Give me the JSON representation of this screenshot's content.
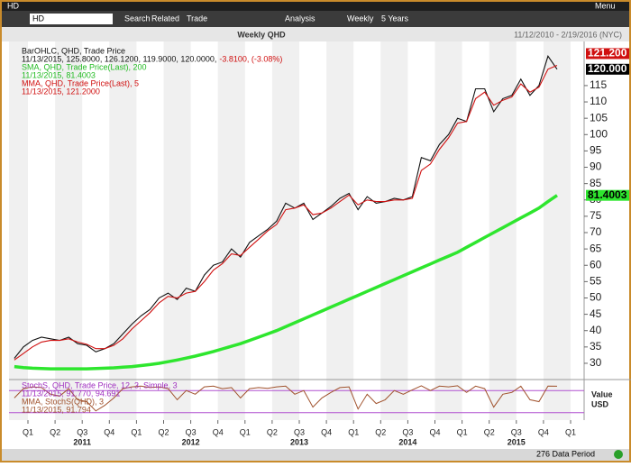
{
  "window": {
    "symbol": "HD",
    "menu": "Menu"
  },
  "toolbar": {
    "input": "HD",
    "items": [
      "Search",
      "Related",
      "Trade",
      "Analysis",
      "Weekly",
      "5 Years"
    ]
  },
  "chart_data": {
    "type": "line",
    "title": "Weekly QHD",
    "date_range": "11/12/2010 - 2/19/2016 (NYC)",
    "ylim": [
      25.3,
      128.5
    ],
    "yticks": [
      30,
      35,
      40,
      45,
      50,
      55,
      60,
      65,
      70,
      75,
      80,
      85,
      90,
      95,
      100,
      105,
      110,
      115
    ],
    "quarter_labels": [
      "Q1",
      "Q2",
      "Q3",
      "Q4",
      "Q1",
      "Q2",
      "Q3",
      "Q4",
      "Q1",
      "Q2",
      "Q3",
      "Q4",
      "Q1",
      "Q2",
      "Q3",
      "Q4",
      "Q1",
      "Q2",
      "Q3",
      "Q4",
      "Q1"
    ],
    "years": [
      "2011",
      "2012",
      "2013",
      "2014",
      "2015"
    ],
    "series": [
      {
        "name": "BarOHLC, QHD, Trade Price",
        "color": "#111111",
        "last_label": "11/13/2015, 125.8000, 126.1200, 119.9000, 120.0000,",
        "change_label": "-3.8100, (-3.08%)",
        "change_color": "#d01010",
        "values": [
          31.5,
          35,
          37,
          38,
          37.5,
          37,
          38,
          36,
          35.5,
          33.5,
          34.5,
          36,
          39,
          42,
          44.5,
          46.5,
          50,
          51.5,
          49.5,
          53,
          52,
          57,
          60,
          61,
          65,
          62.5,
          67,
          69,
          71,
          73.5,
          79,
          77.5,
          79,
          74,
          76,
          78,
          80.5,
          82,
          77,
          81,
          79,
          79.5,
          80.5,
          80,
          81,
          93,
          92,
          97,
          100,
          105,
          104,
          114,
          114,
          107,
          111,
          112,
          117,
          112,
          115,
          124,
          120
        ]
      },
      {
        "name": "SMA, QHD, Trade Price(Last), 200",
        "color": "#2ee62e",
        "last_label": "11/13/2015, 81.4003",
        "values": [
          29,
          28.7,
          28.5,
          28.4,
          28.3,
          28.3,
          28.3,
          28.3,
          28.3,
          28.4,
          28.5,
          28.6,
          28.8,
          29,
          29.3,
          29.6,
          30,
          30.5,
          31,
          31.6,
          32.2,
          32.9,
          33.6,
          34.4,
          35.2,
          36,
          37,
          38,
          39,
          40,
          41.2,
          42.4,
          43.6,
          44.8,
          46,
          47.2,
          48.4,
          49.6,
          50.8,
          52,
          53.2,
          54.4,
          55.6,
          56.8,
          58,
          59.2,
          60.4,
          61.6,
          62.8,
          64,
          65.5,
          67,
          68.5,
          70,
          71.5,
          73,
          74.5,
          76,
          77.5,
          79.5,
          81.4
        ]
      },
      {
        "name": "MMA, QHD, Trade Price(Last), 5",
        "color": "#d01010",
        "last_label": "11/13/2015, 121.2000",
        "values": [
          31,
          33,
          35,
          36.5,
          37,
          37,
          37.5,
          36.5,
          35.8,
          34.5,
          34.5,
          35.5,
          37.5,
          40.5,
          43,
          45.5,
          48.5,
          50.5,
          50,
          51.5,
          52,
          55,
          58.5,
          60.5,
          63.5,
          63,
          65.5,
          68,
          70.5,
          72.5,
          77,
          77.5,
          78.5,
          75.5,
          76,
          77.5,
          79.5,
          81.5,
          78.5,
          80,
          79.5,
          79.5,
          80,
          80,
          80.5,
          89,
          91,
          95.5,
          99,
          103.5,
          104,
          111,
          113,
          109,
          110.5,
          111.5,
          115.5,
          113,
          114.5,
          120,
          121.2
        ]
      }
    ],
    "markers": [
      {
        "value": 121.2,
        "label": "121.200",
        "color": "#d01010",
        "text_color": "#ffffff"
      },
      {
        "value": 120,
        "label": "120.000",
        "color": "#000000",
        "text_color": "#ffffff"
      },
      {
        "value": 81.4003,
        "label": "81.4003",
        "color": "#2ee62e",
        "text_color": "#000000"
      }
    ],
    "stochastic": {
      "name": "StochS, QHD, Trade Price, 12, 3, Simple, 3",
      "last_label": "11/13/2015, 91.770, 94.691",
      "label_color": "#a030c0",
      "ma_name": "MMA, StochS(QHD), 3",
      "ma_label": "11/13/2015, 91.794",
      "color": "#a0522d",
      "ylim": [
        0,
        100
      ],
      "bands": [
        20,
        80
      ],
      "band_color": "#b050d0",
      "axis_labels": [
        "Value",
        "USD"
      ],
      "values": [
        60,
        85,
        90,
        88,
        70,
        65,
        85,
        55,
        50,
        25,
        40,
        60,
        85,
        90,
        92,
        88,
        90,
        85,
        55,
        80,
        70,
        90,
        92,
        85,
        88,
        60,
        85,
        88,
        86,
        90,
        92,
        70,
        80,
        35,
        60,
        75,
        88,
        90,
        30,
        70,
        45,
        55,
        80,
        70,
        82,
        93,
        80,
        92,
        90,
        93,
        75,
        92,
        85,
        35,
        70,
        75,
        92,
        55,
        50,
        92,
        91.77
      ]
    },
    "data_period": "276 Data Period"
  }
}
